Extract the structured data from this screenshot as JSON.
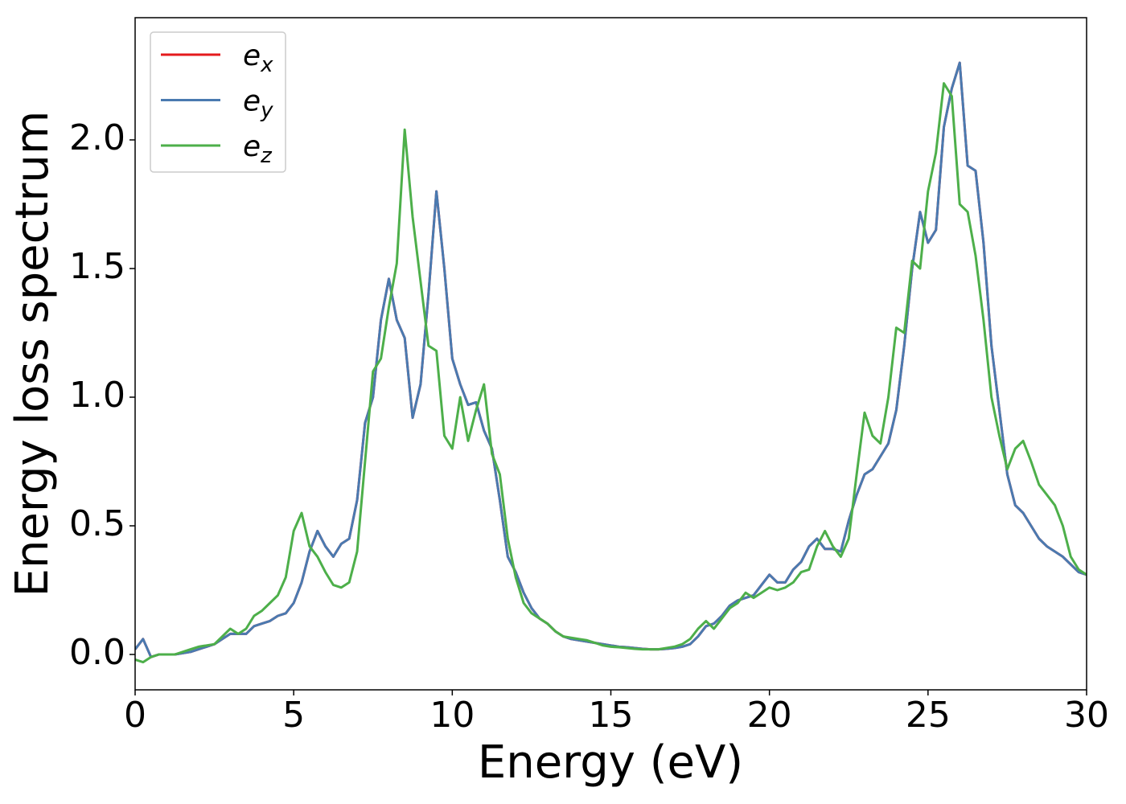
{
  "chart_data": {
    "type": "line",
    "xlabel": "Energy (eV)",
    "ylabel": "Energy loss spectrum",
    "x": [
      0,
      0.25,
      0.5,
      0.75,
      1,
      1.25,
      1.5,
      1.75,
      2,
      2.25,
      2.5,
      2.75,
      3,
      3.25,
      3.5,
      3.75,
      4,
      4.25,
      4.5,
      4.75,
      5,
      5.25,
      5.5,
      5.75,
      6,
      6.25,
      6.5,
      6.75,
      7,
      7.25,
      7.5,
      7.75,
      8,
      8.25,
      8.5,
      8.75,
      9,
      9.25,
      9.5,
      9.75,
      10,
      10.25,
      10.5,
      10.75,
      11,
      11.25,
      11.5,
      11.75,
      12,
      12.25,
      12.5,
      12.75,
      13,
      13.25,
      13.5,
      13.75,
      14,
      14.25,
      14.5,
      14.75,
      15,
      15.25,
      15.5,
      15.75,
      16,
      16.25,
      16.5,
      16.75,
      17,
      17.25,
      17.5,
      17.75,
      18,
      18.25,
      18.5,
      18.75,
      19,
      19.25,
      19.5,
      19.75,
      20,
      20.25,
      20.5,
      20.75,
      21,
      21.25,
      21.5,
      21.75,
      22,
      22.25,
      22.5,
      22.75,
      23,
      23.25,
      23.5,
      23.75,
      24,
      24.25,
      24.5,
      24.75,
      25,
      25.25,
      25.5,
      25.75,
      26,
      26.25,
      26.5,
      26.75,
      27,
      27.25,
      27.5,
      27.75,
      28,
      28.25,
      28.5,
      28.75,
      29,
      29.25,
      29.5,
      29.75,
      30
    ],
    "series": [
      {
        "name": "e_x",
        "color": "#e41a1c",
        "values": [
          0.02,
          0.06,
          -0.01,
          0,
          0,
          0,
          0.005,
          0.01,
          0.02,
          0.03,
          0.04,
          0.06,
          0.08,
          0.08,
          0.08,
          0.11,
          0.12,
          0.13,
          0.15,
          0.16,
          0.2,
          0.28,
          0.4,
          0.48,
          0.42,
          0.38,
          0.43,
          0.45,
          0.6,
          0.9,
          1.0,
          1.3,
          1.46,
          1.3,
          1.23,
          0.92,
          1.05,
          1.4,
          1.8,
          1.5,
          1.15,
          1.05,
          0.97,
          0.98,
          0.87,
          0.8,
          0.6,
          0.38,
          0.32,
          0.24,
          0.18,
          0.14,
          0.12,
          0.09,
          0.07,
          0.06,
          0.055,
          0.05,
          0.045,
          0.04,
          0.035,
          0.03,
          0.028,
          0.025,
          0.022,
          0.02,
          0.02,
          0.022,
          0.025,
          0.03,
          0.04,
          0.07,
          0.11,
          0.12,
          0.15,
          0.19,
          0.21,
          0.22,
          0.23,
          0.27,
          0.31,
          0.28,
          0.28,
          0.33,
          0.36,
          0.42,
          0.45,
          0.41,
          0.41,
          0.4,
          0.52,
          0.62,
          0.7,
          0.72,
          0.77,
          0.82,
          0.95,
          1.2,
          1.5,
          1.72,
          1.6,
          1.65,
          2.05,
          2.2,
          2.3,
          1.9,
          1.88,
          1.6,
          1.2,
          0.95,
          0.7,
          0.58,
          0.55,
          0.5,
          0.45,
          0.42,
          0.4,
          0.38,
          0.35,
          0.32,
          0.31
        ]
      },
      {
        "name": "e_y",
        "color": "#4a7ab0",
        "values": [
          0.02,
          0.06,
          -0.01,
          0,
          0,
          0,
          0.005,
          0.01,
          0.02,
          0.03,
          0.04,
          0.06,
          0.08,
          0.08,
          0.08,
          0.11,
          0.12,
          0.13,
          0.15,
          0.16,
          0.2,
          0.28,
          0.4,
          0.48,
          0.42,
          0.38,
          0.43,
          0.45,
          0.6,
          0.9,
          1.0,
          1.3,
          1.46,
          1.3,
          1.23,
          0.92,
          1.05,
          1.4,
          1.8,
          1.5,
          1.15,
          1.05,
          0.97,
          0.98,
          0.87,
          0.8,
          0.6,
          0.38,
          0.32,
          0.24,
          0.18,
          0.14,
          0.12,
          0.09,
          0.07,
          0.06,
          0.055,
          0.05,
          0.045,
          0.04,
          0.035,
          0.03,
          0.028,
          0.025,
          0.022,
          0.02,
          0.02,
          0.022,
          0.025,
          0.03,
          0.04,
          0.07,
          0.11,
          0.12,
          0.15,
          0.19,
          0.21,
          0.22,
          0.23,
          0.27,
          0.31,
          0.28,
          0.28,
          0.33,
          0.36,
          0.42,
          0.45,
          0.41,
          0.41,
          0.4,
          0.52,
          0.62,
          0.7,
          0.72,
          0.77,
          0.82,
          0.95,
          1.2,
          1.5,
          1.72,
          1.6,
          1.65,
          2.05,
          2.2,
          2.3,
          1.9,
          1.88,
          1.6,
          1.2,
          0.95,
          0.7,
          0.58,
          0.55,
          0.5,
          0.45,
          0.42,
          0.4,
          0.38,
          0.35,
          0.32,
          0.31
        ]
      },
      {
        "name": "e_z",
        "color": "#4daf4a",
        "values": [
          -0.02,
          -0.03,
          -0.01,
          0,
          0,
          0,
          0.01,
          0.02,
          0.03,
          0.035,
          0.04,
          0.07,
          0.1,
          0.08,
          0.1,
          0.15,
          0.17,
          0.2,
          0.23,
          0.3,
          0.48,
          0.55,
          0.42,
          0.38,
          0.32,
          0.27,
          0.26,
          0.28,
          0.4,
          0.75,
          1.1,
          1.15,
          1.35,
          1.52,
          2.04,
          1.7,
          1.45,
          1.2,
          1.18,
          0.85,
          0.8,
          1.0,
          0.83,
          0.95,
          1.05,
          0.78,
          0.7,
          0.45,
          0.3,
          0.2,
          0.16,
          0.14,
          0.12,
          0.09,
          0.07,
          0.065,
          0.06,
          0.055,
          0.045,
          0.035,
          0.03,
          0.028,
          0.025,
          0.022,
          0.02,
          0.02,
          0.02,
          0.025,
          0.03,
          0.04,
          0.06,
          0.1,
          0.13,
          0.1,
          0.14,
          0.18,
          0.2,
          0.24,
          0.22,
          0.24,
          0.26,
          0.25,
          0.26,
          0.28,
          0.32,
          0.33,
          0.42,
          0.48,
          0.42,
          0.38,
          0.45,
          0.7,
          0.94,
          0.85,
          0.82,
          1.0,
          1.27,
          1.25,
          1.53,
          1.5,
          1.8,
          1.95,
          2.22,
          2.17,
          1.75,
          1.72,
          1.55,
          1.3,
          1.0,
          0.85,
          0.72,
          0.8,
          0.83,
          0.75,
          0.66,
          0.62,
          0.58,
          0.5,
          0.38,
          0.33,
          0.31
        ]
      }
    ],
    "xlim": [
      0,
      30
    ],
    "xticks": [
      0,
      5,
      10,
      15,
      20,
      25,
      30
    ],
    "ylim": [
      -0.1375,
      2.475
    ],
    "yticks": [
      {
        "value": 0,
        "label": "0.0"
      },
      0.5,
      {
        "value": 1,
        "label": "1.0"
      },
      1.5,
      {
        "value": 2,
        "label": "2.0"
      }
    ],
    "legend": "upper left",
    "grid": false
  }
}
